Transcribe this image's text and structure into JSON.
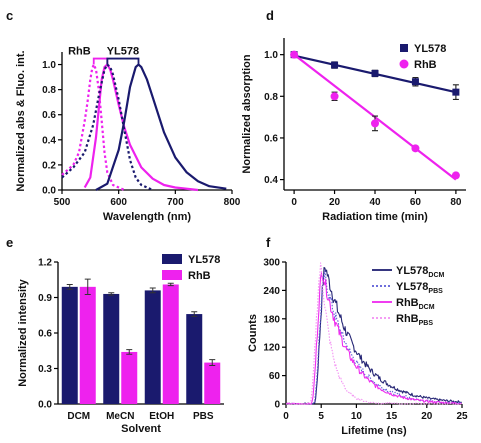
{
  "colors": {
    "navy": "#1a1a6e",
    "magenta": "#ee22ee",
    "errorbar": "#222222",
    "pbs_yl578": "#5a5ad6",
    "pbs_rhb": "#f28ef2"
  },
  "chart_data": [
    {
      "panel": "c",
      "type": "line",
      "xlabel": "Wavelength (nm)",
      "ylabel": "Normalized abs & Fluo. int.",
      "xlim": [
        500,
        800
      ],
      "ylim": [
        0,
        1.1
      ],
      "xticks": [
        500,
        600,
        700,
        800
      ],
      "yticks": [
        0.0,
        0.2,
        0.4,
        0.6,
        0.8,
        1.0
      ],
      "legend_labels": [
        "RhB",
        "YL578"
      ],
      "series": [
        {
          "name": "RhB",
          "kind": "absorption",
          "color": "magenta",
          "dash": true,
          "x": [
            500,
            520,
            530,
            540,
            545,
            550,
            553,
            556,
            560,
            565,
            570,
            575,
            580,
            590,
            610
          ],
          "y": [
            0.12,
            0.2,
            0.3,
            0.55,
            0.7,
            0.88,
            0.96,
            1.0,
            0.96,
            0.8,
            0.55,
            0.3,
            0.14,
            0.04,
            0.0
          ]
        },
        {
          "name": "RhB",
          "kind": "fluorescence",
          "color": "magenta",
          "dash": false,
          "x": [
            540,
            550,
            560,
            565,
            570,
            575,
            580,
            585,
            590,
            600,
            610,
            620,
            640,
            660,
            680,
            700,
            740
          ],
          "y": [
            0.02,
            0.1,
            0.42,
            0.65,
            0.88,
            0.98,
            1.0,
            0.96,
            0.88,
            0.68,
            0.5,
            0.36,
            0.18,
            0.09,
            0.04,
            0.02,
            0.0
          ]
        },
        {
          "name": "YL578",
          "kind": "absorption",
          "color": "navy",
          "dash": true,
          "x": [
            500,
            520,
            540,
            555,
            565,
            575,
            580,
            585,
            590,
            600,
            610,
            620,
            630,
            640,
            660
          ],
          "y": [
            0.1,
            0.18,
            0.3,
            0.52,
            0.75,
            0.96,
            1.0,
            0.98,
            0.92,
            0.72,
            0.48,
            0.24,
            0.1,
            0.04,
            0.0
          ]
        },
        {
          "name": "YL578",
          "kind": "fluorescence",
          "color": "navy",
          "dash": false,
          "x": [
            560,
            580,
            600,
            610,
            620,
            630,
            635,
            640,
            650,
            660,
            680,
            700,
            720,
            740,
            760,
            790
          ],
          "y": [
            0.0,
            0.05,
            0.32,
            0.55,
            0.82,
            0.98,
            1.0,
            0.98,
            0.88,
            0.74,
            0.46,
            0.26,
            0.14,
            0.07,
            0.03,
            0.01
          ]
        }
      ]
    },
    {
      "panel": "d",
      "type": "scatter",
      "xlabel": "Radiation time (min)",
      "ylabel": "Normalized absorption",
      "xlim": [
        -5,
        85
      ],
      "ylim": [
        0.35,
        1.08
      ],
      "xticks": [
        0,
        20,
        40,
        60,
        80
      ],
      "yticks": [
        0.4,
        0.6,
        0.8,
        1.0
      ],
      "legend_position": "top-right",
      "series": [
        {
          "name": "YL578",
          "marker": "square",
          "color": "navy",
          "x": [
            0,
            20,
            40,
            60,
            80
          ],
          "y": [
            1.0,
            0.95,
            0.91,
            0.87,
            0.82
          ],
          "err": [
            0.01,
            0.015,
            0.015,
            0.02,
            0.035
          ],
          "fit": [
            [
              0,
              0.995
            ],
            [
              80,
              0.82
            ]
          ]
        },
        {
          "name": "RhB",
          "marker": "circle",
          "color": "magenta",
          "x": [
            0,
            20,
            40,
            60,
            80
          ],
          "y": [
            1.0,
            0.8,
            0.67,
            0.55,
            0.42
          ],
          "err": [
            0.01,
            0.02,
            0.035,
            0.01,
            0.01
          ],
          "fit": [
            [
              0,
              1.0
            ],
            [
              80,
              0.4
            ]
          ]
        }
      ]
    },
    {
      "panel": "e",
      "type": "bar",
      "xlabel": "Solvent",
      "ylabel": "Normalized intensity",
      "ylim": [
        0,
        1.2
      ],
      "yticks": [
        0.0,
        0.3,
        0.6,
        0.9,
        1.2
      ],
      "categories": [
        "DCM",
        "MeCN",
        "EtOH",
        "PBS"
      ],
      "legend_position": "top-right",
      "series": [
        {
          "name": "YL578",
          "color": "navy",
          "values": [
            0.99,
            0.93,
            0.96,
            0.76
          ],
          "err": [
            0.02,
            0.01,
            0.02,
            0.02
          ]
        },
        {
          "name": "RhB",
          "color": "magenta",
          "values": [
            0.99,
            0.44,
            1.01,
            0.35
          ],
          "err": [
            0.065,
            0.02,
            0.01,
            0.025
          ]
        }
      ]
    },
    {
      "panel": "f",
      "type": "line",
      "xlabel": "Lifetime (ns)",
      "ylabel": "Counts",
      "xlim": [
        0,
        25
      ],
      "ylim": [
        0,
        300
      ],
      "xticks": [
        0,
        5,
        10,
        15,
        20,
        25
      ],
      "yticks": [
        0,
        60,
        120,
        180,
        240,
        300
      ],
      "legend_position": "top-right",
      "series": [
        {
          "name": "YL578",
          "sub": "DCM",
          "color": "navy",
          "dash": false,
          "peak": 5.6,
          "amp": 290,
          "tau": 4.6,
          "rise": 0.8
        },
        {
          "name": "YL578",
          "sub": "PBS",
          "color": "pbs_yl578",
          "dash": true,
          "peak": 5.5,
          "amp": 270,
          "tau": 4.0,
          "rise": 0.8
        },
        {
          "name": "RhB",
          "sub": "DCM",
          "color": "magenta",
          "dash": false,
          "peak": 5.2,
          "amp": 280,
          "tau": 3.8,
          "rise": 0.7
        },
        {
          "name": "RhB",
          "sub": "PBS",
          "color": "pbs_rhb",
          "dash": true,
          "peak": 5.0,
          "amp": 290,
          "tau": 1.6,
          "rise": 0.6
        }
      ]
    }
  ]
}
